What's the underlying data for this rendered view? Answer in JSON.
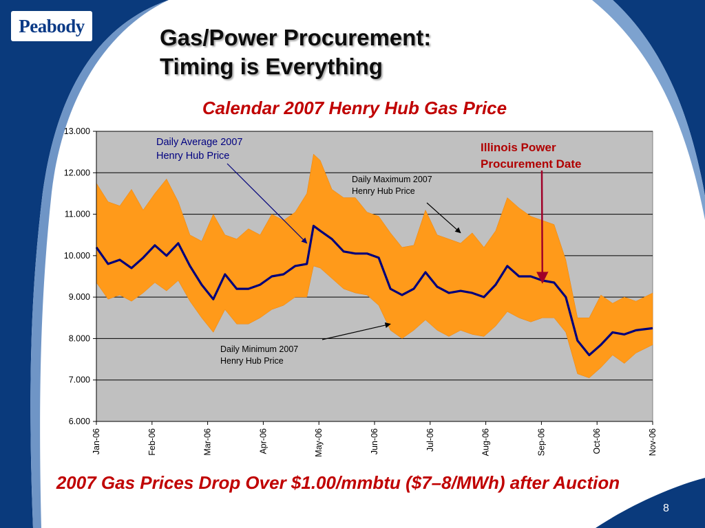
{
  "logo": "Peabody",
  "title": [
    "Gas/Power Procurement:",
    "Timing is Everything"
  ],
  "footer": "2007 Gas Prices Drop Over $1.00/mmbtu ($7–8/MWh) after Auction",
  "page_number": "8",
  "colors": {
    "navy": "#0a3a7c",
    "band": "#ff9a1a",
    "average_line": "#00007a",
    "plot_bg": "#c0c0c0",
    "red_text": "#c00000",
    "illinois_arrow": "#a00028"
  },
  "chart_data": {
    "type": "area",
    "title": "Calendar 2007 Henry Hub Gas Price",
    "xlabel": "",
    "ylabel": "",
    "ylim": [
      6,
      13
    ],
    "y_ticks": [
      6,
      7,
      8,
      9,
      10,
      11,
      12,
      13
    ],
    "y_tick_labels": [
      "6.000",
      "7.000",
      "8.000",
      "9.000",
      "10.000",
      "11.000",
      "12.000",
      "13.000"
    ],
    "x_tick_labels": [
      "Jan-06",
      "Feb-06",
      "Mar-06",
      "Apr-06",
      "May-06",
      "Jun-06",
      "Jul-06",
      "Aug-06",
      "Sep-06",
      "Oct-06",
      "Nov-06"
    ],
    "grid": true,
    "legend": "none",
    "date_range": [
      "2006-01-01",
      "2006-11-30"
    ],
    "series": [
      {
        "name": "Daily Maximum 2007 Henry Hub Price",
        "points": [
          [
            "2006-01-01",
            11.75
          ],
          [
            "2006-01-08",
            11.3
          ],
          [
            "2006-01-15",
            11.2
          ],
          [
            "2006-01-22",
            11.6
          ],
          [
            "2006-01-29",
            11.1
          ],
          [
            "2006-02-05",
            11.5
          ],
          [
            "2006-02-12",
            11.85
          ],
          [
            "2006-02-19",
            11.3
          ],
          [
            "2006-02-26",
            10.5
          ],
          [
            "2006-03-05",
            10.35
          ],
          [
            "2006-03-12",
            11.0
          ],
          [
            "2006-03-19",
            10.5
          ],
          [
            "2006-03-26",
            10.4
          ],
          [
            "2006-04-02",
            10.65
          ],
          [
            "2006-04-09",
            10.5
          ],
          [
            "2006-04-16",
            11.0
          ],
          [
            "2006-04-23",
            10.85
          ],
          [
            "2006-04-30",
            11.05
          ],
          [
            "2006-05-07",
            11.5
          ],
          [
            "2006-05-11",
            12.45
          ],
          [
            "2006-05-15",
            12.3
          ],
          [
            "2006-05-22",
            11.6
          ],
          [
            "2006-05-29",
            11.4
          ],
          [
            "2006-06-05",
            11.4
          ],
          [
            "2006-06-12",
            11.05
          ],
          [
            "2006-06-19",
            10.95
          ],
          [
            "2006-06-26",
            10.55
          ],
          [
            "2006-07-03",
            10.2
          ],
          [
            "2006-07-10",
            10.25
          ],
          [
            "2006-07-17",
            11.1
          ],
          [
            "2006-07-24",
            10.5
          ],
          [
            "2006-07-31",
            10.4
          ],
          [
            "2006-08-07",
            10.3
          ],
          [
            "2006-08-14",
            10.55
          ],
          [
            "2006-08-21",
            10.2
          ],
          [
            "2006-08-28",
            10.6
          ],
          [
            "2006-09-04",
            11.4
          ],
          [
            "2006-09-11",
            11.15
          ],
          [
            "2006-09-18",
            10.95
          ],
          [
            "2006-09-25",
            10.85
          ],
          [
            "2006-10-02",
            10.75
          ],
          [
            "2006-10-09",
            9.9
          ],
          [
            "2006-10-16",
            8.5
          ],
          [
            "2006-10-23",
            8.5
          ],
          [
            "2006-10-30",
            9.05
          ],
          [
            "2006-11-06",
            8.85
          ],
          [
            "2006-11-13",
            9.0
          ],
          [
            "2006-11-20",
            8.9
          ],
          [
            "2006-11-30",
            9.1
          ]
        ]
      },
      {
        "name": "Daily Average 2007 Henry Hub Price",
        "points": [
          [
            "2006-01-01",
            10.2
          ],
          [
            "2006-01-08",
            9.8
          ],
          [
            "2006-01-15",
            9.9
          ],
          [
            "2006-01-22",
            9.7
          ],
          [
            "2006-01-29",
            9.95
          ],
          [
            "2006-02-05",
            10.25
          ],
          [
            "2006-02-12",
            10.0
          ],
          [
            "2006-02-19",
            10.3
          ],
          [
            "2006-02-26",
            9.75
          ],
          [
            "2006-03-05",
            9.3
          ],
          [
            "2006-03-12",
            8.95
          ],
          [
            "2006-03-19",
            9.55
          ],
          [
            "2006-03-26",
            9.2
          ],
          [
            "2006-04-02",
            9.2
          ],
          [
            "2006-04-09",
            9.3
          ],
          [
            "2006-04-16",
            9.5
          ],
          [
            "2006-04-23",
            9.55
          ],
          [
            "2006-04-30",
            9.75
          ],
          [
            "2006-05-07",
            9.8
          ],
          [
            "2006-05-11",
            10.72
          ],
          [
            "2006-05-15",
            10.6
          ],
          [
            "2006-05-22",
            10.4
          ],
          [
            "2006-05-29",
            10.1
          ],
          [
            "2006-06-05",
            10.05
          ],
          [
            "2006-06-12",
            10.05
          ],
          [
            "2006-06-19",
            9.95
          ],
          [
            "2006-06-26",
            9.2
          ],
          [
            "2006-07-03",
            9.05
          ],
          [
            "2006-07-10",
            9.2
          ],
          [
            "2006-07-17",
            9.6
          ],
          [
            "2006-07-24",
            9.25
          ],
          [
            "2006-07-31",
            9.1
          ],
          [
            "2006-08-07",
            9.15
          ],
          [
            "2006-08-14",
            9.1
          ],
          [
            "2006-08-21",
            9.0
          ],
          [
            "2006-08-28",
            9.3
          ],
          [
            "2006-09-04",
            9.75
          ],
          [
            "2006-09-11",
            9.5
          ],
          [
            "2006-09-18",
            9.5
          ],
          [
            "2006-09-25",
            9.4
          ],
          [
            "2006-10-02",
            9.35
          ],
          [
            "2006-10-09",
            9.0
          ],
          [
            "2006-10-16",
            7.95
          ],
          [
            "2006-10-23",
            7.6
          ],
          [
            "2006-10-30",
            7.85
          ],
          [
            "2006-11-06",
            8.15
          ],
          [
            "2006-11-13",
            8.1
          ],
          [
            "2006-11-20",
            8.2
          ],
          [
            "2006-11-30",
            8.25
          ]
        ]
      },
      {
        "name": "Daily Minimum 2007 Henry Hub Price",
        "points": [
          [
            "2006-01-01",
            9.35
          ],
          [
            "2006-01-08",
            8.95
          ],
          [
            "2006-01-15",
            9.05
          ],
          [
            "2006-01-22",
            8.9
          ],
          [
            "2006-01-29",
            9.1
          ],
          [
            "2006-02-05",
            9.35
          ],
          [
            "2006-02-12",
            9.15
          ],
          [
            "2006-02-19",
            9.4
          ],
          [
            "2006-02-26",
            8.9
          ],
          [
            "2006-03-05",
            8.5
          ],
          [
            "2006-03-12",
            8.15
          ],
          [
            "2006-03-19",
            8.7
          ],
          [
            "2006-03-26",
            8.35
          ],
          [
            "2006-04-02",
            8.35
          ],
          [
            "2006-04-09",
            8.5
          ],
          [
            "2006-04-16",
            8.7
          ],
          [
            "2006-04-23",
            8.8
          ],
          [
            "2006-04-30",
            9.0
          ],
          [
            "2006-05-07",
            9.0
          ],
          [
            "2006-05-11",
            9.75
          ],
          [
            "2006-05-15",
            9.7
          ],
          [
            "2006-05-22",
            9.45
          ],
          [
            "2006-05-29",
            9.2
          ],
          [
            "2006-06-05",
            9.1
          ],
          [
            "2006-06-12",
            9.05
          ],
          [
            "2006-06-19",
            8.8
          ],
          [
            "2006-06-26",
            8.2
          ],
          [
            "2006-07-03",
            8.0
          ],
          [
            "2006-07-10",
            8.2
          ],
          [
            "2006-07-17",
            8.45
          ],
          [
            "2006-07-24",
            8.2
          ],
          [
            "2006-07-31",
            8.05
          ],
          [
            "2006-08-07",
            8.2
          ],
          [
            "2006-08-14",
            8.1
          ],
          [
            "2006-08-21",
            8.05
          ],
          [
            "2006-08-28",
            8.3
          ],
          [
            "2006-09-04",
            8.65
          ],
          [
            "2006-09-11",
            8.5
          ],
          [
            "2006-09-18",
            8.4
          ],
          [
            "2006-09-25",
            8.5
          ],
          [
            "2006-10-02",
            8.5
          ],
          [
            "2006-10-09",
            8.15
          ],
          [
            "2006-10-16",
            7.15
          ],
          [
            "2006-10-23",
            7.05
          ],
          [
            "2006-10-30",
            7.3
          ],
          [
            "2006-11-06",
            7.6
          ],
          [
            "2006-11-13",
            7.4
          ],
          [
            "2006-11-20",
            7.65
          ],
          [
            "2006-11-30",
            7.85
          ]
        ]
      }
    ],
    "annotations": [
      {
        "id": "avg",
        "lines": [
          "Daily Average 2007",
          "Henry Hub Price"
        ],
        "points_to": [
          "2006-05-07",
          10.3
        ]
      },
      {
        "id": "max",
        "lines": [
          "Daily Maximum 2007",
          "Henry Hub Price"
        ],
        "points_to": [
          "2006-08-07",
          10.55
        ]
      },
      {
        "id": "min",
        "lines": [
          "Daily Minimum 2007",
          "Henry Hub Price"
        ],
        "points_to": [
          "2006-06-26",
          8.35
        ]
      },
      {
        "id": "illinois",
        "lines": [
          "Illinois Power",
          "Procurement Date"
        ],
        "points_to": [
          "2006-09-25",
          9.35
        ]
      }
    ]
  }
}
